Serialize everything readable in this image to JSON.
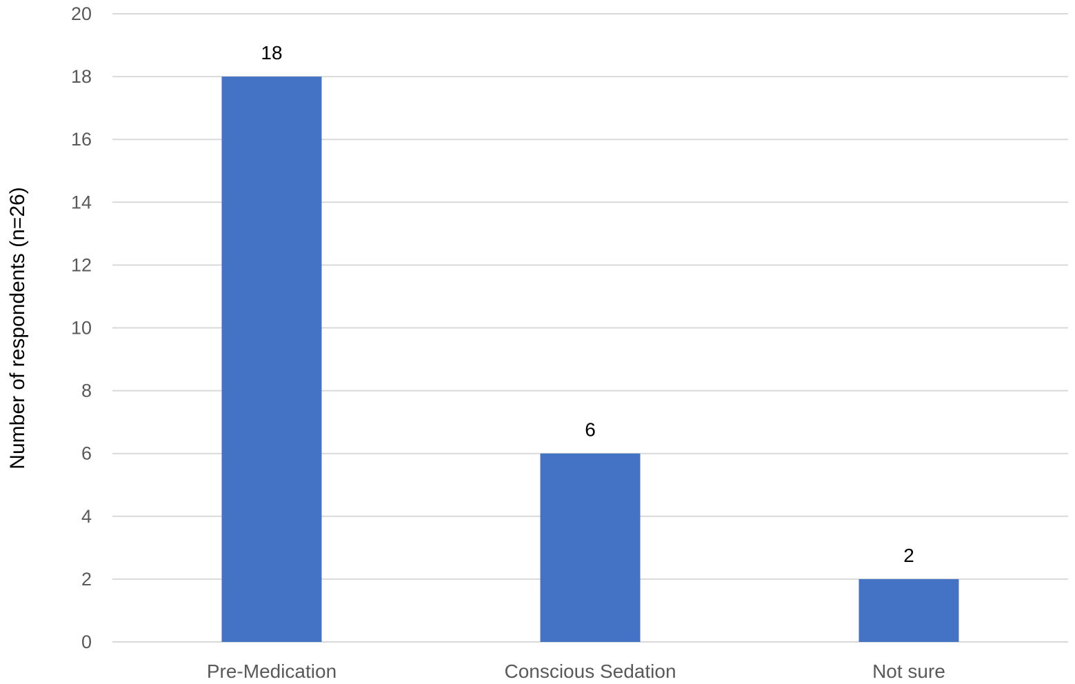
{
  "chart_data": {
    "type": "bar",
    "categories": [
      "Pre-Medication",
      "Conscious Sedation",
      "Not sure"
    ],
    "values": [
      18,
      6,
      2
    ],
    "data_labels": [
      "18",
      "6",
      "2"
    ],
    "title": "",
    "xlabel": "",
    "ylabel": "Number of respondents (n=26)",
    "ylim": [
      0,
      20
    ],
    "y_ticks": [
      0,
      2,
      4,
      6,
      8,
      10,
      12,
      14,
      16,
      18,
      20
    ],
    "grid": true,
    "legend": "none",
    "colors": {
      "bar": "#4472C4",
      "grid": "#D9D9D9",
      "tick_text": "#595959",
      "label_text": "#000000"
    }
  }
}
